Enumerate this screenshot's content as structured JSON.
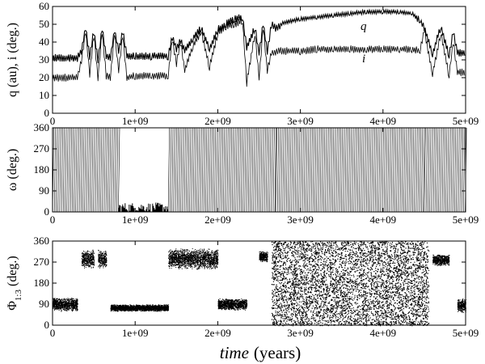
{
  "chart_data": [
    {
      "type": "line",
      "ylabel": "q (au), i (deg.)",
      "ylim": [
        0,
        60
      ],
      "xlim": [
        0,
        5000000000.0
      ],
      "xticks": [
        "0",
        "1e+09",
        "2e+09",
        "3e+09",
        "4e+09",
        "5e+09"
      ],
      "yticks": [
        "0",
        "10",
        "20",
        "30",
        "40",
        "50",
        "60"
      ],
      "annotations": [
        "q",
        "i"
      ],
      "series": [
        {
          "name": "q",
          "x": [
            0,
            300000000.0,
            350000000.0,
            400000000.0,
            450000000.0,
            500000000.0,
            550000000.0,
            600000000.0,
            650000000.0,
            700000000.0,
            750000000.0,
            800000000.0,
            850000000.0,
            900000000.0,
            1000000000.0,
            1200000000.0,
            1400000000.0,
            1450000000.0,
            1500000000.0,
            1550000000.0,
            1600000000.0,
            1700000000.0,
            1800000000.0,
            1900000000.0,
            2000000000.0,
            2100000000.0,
            2200000000.0,
            2300000000.0,
            2350000000.0,
            2450000000.0,
            2500000000.0,
            2550000000.0,
            2600000000.0,
            2650000000.0,
            2700000000.0,
            2750000000.0,
            2800000000.0,
            3000000000.0,
            3200000000.0,
            3400000000.0,
            3600000000.0,
            3800000000.0,
            4000000000.0,
            4200000000.0,
            4350000000.0,
            4450000000.0,
            4500000000.0,
            4600000000.0,
            4700000000.0,
            4800000000.0,
            4850000000.0,
            4900000000.0,
            5000000000.0
          ],
          "values": [
            31,
            31,
            35,
            48,
            32,
            46,
            30,
            48,
            32,
            31,
            47,
            35,
            46,
            32,
            32,
            32,
            32,
            43,
            36,
            41,
            35,
            42,
            48,
            36,
            47,
            50,
            53,
            54,
            37,
            48,
            34,
            50,
            35,
            50,
            48,
            49,
            51,
            53,
            54,
            55,
            56,
            57,
            57,
            57,
            56,
            52,
            48,
            33,
            49,
            32,
            46,
            34,
            34
          ]
        },
        {
          "name": "i",
          "x": [
            0,
            300000000.0,
            350000000.0,
            400000000.0,
            450000000.0,
            500000000.0,
            550000000.0,
            600000000.0,
            650000000.0,
            700000000.0,
            750000000.0,
            800000000.0,
            850000000.0,
            900000000.0,
            1000000000.0,
            1200000000.0,
            1400000000.0,
            1450000000.0,
            1500000000.0,
            1550000000.0,
            1600000000.0,
            1700000000.0,
            1800000000.0,
            1900000000.0,
            2000000000.0,
            2100000000.0,
            2200000000.0,
            2300000000.0,
            2350000000.0,
            2450000000.0,
            2500000000.0,
            2550000000.0,
            2600000000.0,
            2650000000.0,
            2700000000.0,
            2750000000.0,
            2800000000.0,
            3000000000.0,
            3200000000.0,
            3400000000.0,
            3600000000.0,
            3800000000.0,
            4000000000.0,
            4200000000.0,
            4350000000.0,
            4450000000.0,
            4500000000.0,
            4600000000.0,
            4700000000.0,
            4800000000.0,
            4850000000.0,
            4900000000.0,
            5000000000.0
          ],
          "values": [
            20,
            20,
            30,
            46,
            22,
            44,
            20,
            46,
            21,
            20,
            45,
            24,
            44,
            20,
            21,
            21,
            21,
            42,
            28,
            40,
            24,
            38,
            46,
            26,
            45,
            49,
            50,
            52,
            17,
            45,
            20,
            48,
            24,
            34,
            34,
            35,
            35,
            35,
            36,
            36,
            36,
            36,
            36,
            36,
            36,
            35,
            47,
            22,
            45,
            21,
            40,
            23,
            23
          ]
        }
      ]
    },
    {
      "type": "scatter",
      "ylabel": "ω (deg.)",
      "ylim": [
        0,
        360
      ],
      "xlim": [
        0,
        5000000000.0
      ],
      "xticks": [
        "0",
        "1e+09",
        "2e+09",
        "3e+09",
        "4e+09",
        "5e+09"
      ],
      "yticks": [
        "0",
        "90",
        "180",
        "270",
        "360"
      ],
      "circulation_intervals": [
        [
          0,
          800000000.0
        ],
        [
          1400000000.0,
          2700000000.0
        ],
        [
          2700000000.0,
          4500000000.0
        ],
        [
          4500000000.0,
          5000000000.0
        ]
      ],
      "libration_interval": {
        "x": [
          800000000.0,
          1400000000.0
        ],
        "range": [
          0,
          40
        ]
      }
    },
    {
      "type": "scatter",
      "ylabel": "Φ",
      "ylabel_subscript": "1:3",
      "ylabel_unit": "(deg.)",
      "xlabel": "time",
      "xlabel_unit": "(years)",
      "ylim": [
        0,
        360
      ],
      "xlim": [
        0,
        5000000000.0
      ],
      "xticks": [
        "0",
        "1e+09",
        "2e+09",
        "3e+09",
        "4e+09",
        "5e+09"
      ],
      "yticks": [
        "0",
        "90",
        "180",
        "270",
        "360"
      ],
      "libration_bands": [
        {
          "x": [
            0,
            300000000.0
          ],
          "center": 90,
          "half_width": 30
        },
        {
          "x": [
            350000000.0,
            500000000.0
          ],
          "center": 285,
          "half_width": 40
        },
        {
          "x": [
            550000000.0,
            650000000.0
          ],
          "center": 285,
          "half_width": 40
        },
        {
          "x": [
            700000000.0,
            1400000000.0
          ],
          "center": 75,
          "half_width": 15
        },
        {
          "x": [
            1400000000.0,
            2000000000.0
          ],
          "center": 285,
          "half_width": 45
        },
        {
          "x": [
            2000000000.0,
            2350000000.0
          ],
          "center": 90,
          "half_width": 25
        },
        {
          "x": [
            2500000000.0,
            2600000000.0
          ],
          "center": 295,
          "half_width": 25
        },
        {
          "x": [
            4600000000.0,
            4800000000.0
          ],
          "center": 280,
          "half_width": 25
        },
        {
          "x": [
            4900000000.0,
            5000000000.0
          ],
          "center": 85,
          "half_width": 30
        }
      ],
      "circulation_intervals": [
        [
          2650000000.0,
          4550000000.0
        ]
      ]
    }
  ]
}
